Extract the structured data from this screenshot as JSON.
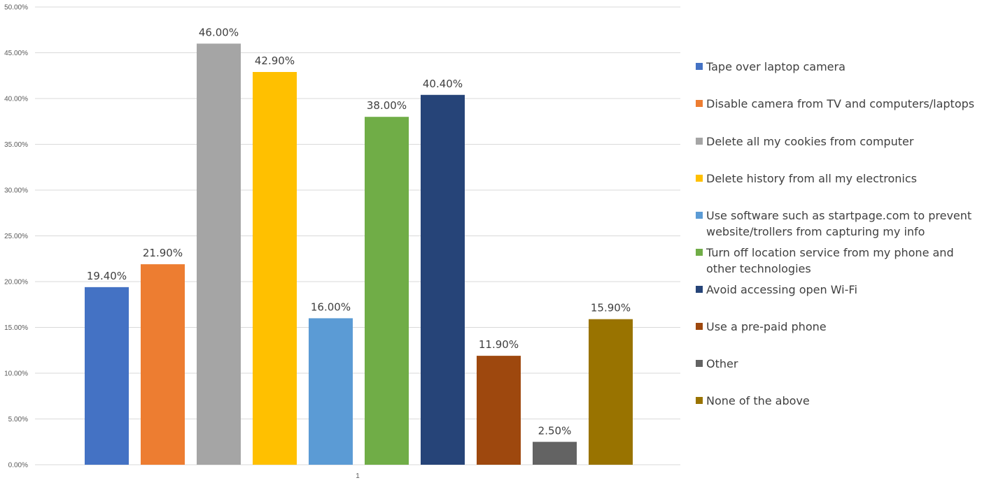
{
  "chart_data": {
    "type": "bar",
    "categories": [
      "1"
    ],
    "ylim": [
      0,
      50
    ],
    "y_tick_step": 5,
    "y_tick_format": "percent_2dp",
    "grid": true,
    "legend_position": "right",
    "series": [
      {
        "name": "Tape over laptop camera",
        "value": 19.4,
        "label": "19.40%",
        "color": "#4472C4"
      },
      {
        "name": "Disable camera from TV and computers/laptops",
        "value": 21.9,
        "label": "21.90%",
        "color": "#ED7D31"
      },
      {
        "name": "Delete all my cookies from computer",
        "value": 46.0,
        "label": "46.00%",
        "color": "#A5A5A5"
      },
      {
        "name": "Delete history from all my electronics",
        "value": 42.9,
        "label": "42.90%",
        "color": "#FFC000"
      },
      {
        "name": "Use software such as startpage.com to prevent website/trollers from capturing my info",
        "value": 16.0,
        "label": "16.00%",
        "color": "#5B9BD5"
      },
      {
        "name": "Turn off location service from my phone and other technologies",
        "value": 38.0,
        "label": "38.00%",
        "color": "#70AD47"
      },
      {
        "name": "Avoid accessing open Wi-Fi",
        "value": 40.4,
        "label": "40.40%",
        "color": "#264478"
      },
      {
        "name": "Use a pre-paid phone",
        "value": 11.9,
        "label": "11.90%",
        "color": "#9E480E"
      },
      {
        "name": "Other",
        "value": 2.5,
        "label": "2.50%",
        "color": "#636363"
      },
      {
        "name": "None of the above",
        "value": 15.9,
        "label": "15.90%",
        "color": "#997300"
      }
    ]
  }
}
